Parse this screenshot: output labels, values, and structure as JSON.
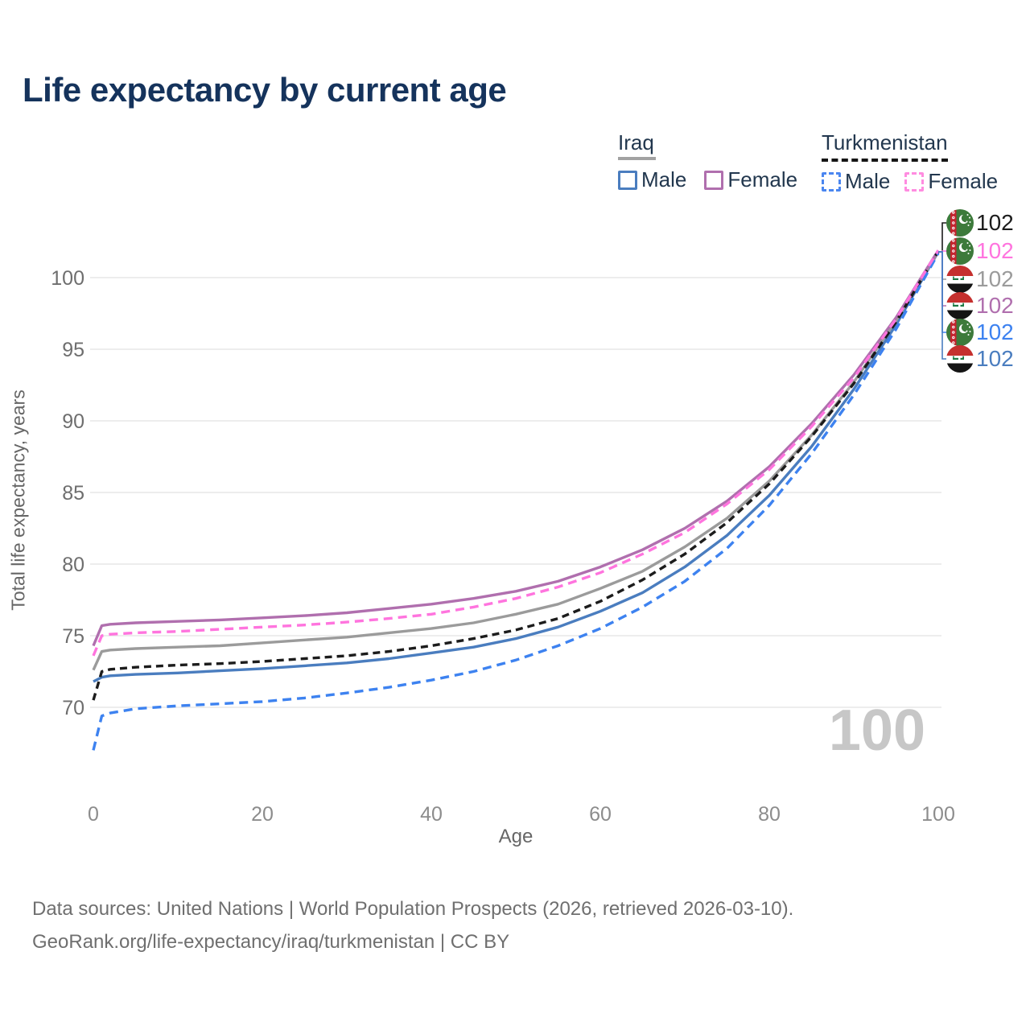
{
  "title": "Life expectancy by current age",
  "legend": {
    "iraq": {
      "label": "Iraq",
      "male_label": "Male",
      "female_label": "Female"
    },
    "turkmenistan": {
      "label": "Turkmenistan",
      "male_label": "Male",
      "female_label": "Female"
    }
  },
  "watermark": "100",
  "footer": {
    "line1": "Data sources: United Nations | World Population Prospects (2026, retrieved 2026-03-10).",
    "line2": "GeoRank.org/life-expectancy/iraq/turkmenistan | CC BY"
  },
  "colors": {
    "iraq_male": "#4a7dbf",
    "iraq_female": "#b06fae",
    "iraq_both": "#9b9b9b",
    "turkmenistan_male": "#3d82f0",
    "turkmenistan_female": "#ff74de",
    "turkmenistan_both": "#1c1c1c",
    "title_text": "#15335c",
    "grid": "#e7e7e7",
    "watermark": "#c7c7c7"
  },
  "right_labels": [
    {
      "country": "turkmenistan",
      "value": "102",
      "color": "#1c1c1c"
    },
    {
      "country": "turkmenistan",
      "value": "102",
      "color": "#ff74de"
    },
    {
      "country": "iraq",
      "value": "102",
      "color": "#9b9b9b"
    },
    {
      "country": "iraq",
      "value": "102",
      "color": "#b06fae"
    },
    {
      "country": "turkmenistan",
      "value": "102",
      "color": "#3d82f0"
    },
    {
      "country": "iraq",
      "value": "102",
      "color": "#4a7dbf"
    }
  ],
  "chart_data": {
    "type": "line",
    "title": "Life expectancy by current age",
    "xlabel": "Age",
    "ylabel": "Total life expectancy, years",
    "xlim": [
      0,
      100
    ],
    "ylim": [
      66.5,
      102.5
    ],
    "xticks": [
      0,
      20,
      40,
      60,
      80,
      100
    ],
    "yticks": [
      70,
      75,
      80,
      85,
      90,
      95,
      100
    ],
    "grid": "horizontal",
    "legend_position": "top-right",
    "x": [
      0,
      1,
      2,
      5,
      10,
      15,
      20,
      25,
      30,
      35,
      40,
      45,
      50,
      55,
      60,
      65,
      70,
      75,
      80,
      85,
      90,
      95,
      100
    ],
    "series": [
      {
        "name": "Iraq Male",
        "country": "iraq",
        "dash": "solid",
        "color": "#4a7dbf",
        "values": [
          71.8,
          72.1,
          72.2,
          72.3,
          72.4,
          72.55,
          72.7,
          72.9,
          73.1,
          73.4,
          73.8,
          74.2,
          74.8,
          75.6,
          76.7,
          78.0,
          79.8,
          82.0,
          84.8,
          88.2,
          92.2,
          96.7,
          101.8
        ]
      },
      {
        "name": "Iraq (both sexes)",
        "country": "iraq",
        "dash": "solid",
        "color": "#9b9b9b",
        "values": [
          72.6,
          73.9,
          74.0,
          74.1,
          74.2,
          74.3,
          74.5,
          74.7,
          74.9,
          75.2,
          75.5,
          75.9,
          76.5,
          77.2,
          78.3,
          79.5,
          81.2,
          83.2,
          85.8,
          89.0,
          92.7,
          97.0,
          101.8
        ]
      },
      {
        "name": "Iraq Female",
        "country": "iraq",
        "dash": "solid",
        "color": "#b06fae",
        "values": [
          74.3,
          75.7,
          75.8,
          75.9,
          76.0,
          76.1,
          76.25,
          76.4,
          76.6,
          76.9,
          77.2,
          77.6,
          78.1,
          78.8,
          79.8,
          81.0,
          82.5,
          84.4,
          86.8,
          89.8,
          93.2,
          97.2,
          101.9
        ]
      },
      {
        "name": "Turkmenistan (both sexes)",
        "country": "turkmenistan",
        "dash": "dashed",
        "color": "#1c1c1c",
        "values": [
          70.5,
          72.5,
          72.65,
          72.8,
          72.95,
          73.05,
          73.2,
          73.4,
          73.6,
          73.9,
          74.3,
          74.8,
          75.4,
          76.2,
          77.4,
          78.9,
          80.7,
          82.9,
          85.6,
          88.9,
          92.6,
          96.9,
          101.85
        ]
      },
      {
        "name": "Turkmenistan Male",
        "country": "turkmenistan",
        "dash": "dashed",
        "color": "#3d82f0",
        "values": [
          67.0,
          69.4,
          69.6,
          69.9,
          70.1,
          70.25,
          70.4,
          70.65,
          71.0,
          71.4,
          71.9,
          72.5,
          73.3,
          74.3,
          75.5,
          77.0,
          78.8,
          81.1,
          84.1,
          87.7,
          91.8,
          96.4,
          101.7
        ]
      },
      {
        "name": "Turkmenistan Female",
        "country": "turkmenistan",
        "dash": "dashed",
        "color": "#ff74de",
        "values": [
          73.6,
          75.0,
          75.1,
          75.2,
          75.3,
          75.45,
          75.6,
          75.75,
          75.95,
          76.2,
          76.5,
          77.0,
          77.6,
          78.4,
          79.4,
          80.7,
          82.2,
          84.2,
          86.6,
          89.6,
          93.0,
          97.1,
          101.9
        ]
      }
    ],
    "end_value_label": "102"
  }
}
